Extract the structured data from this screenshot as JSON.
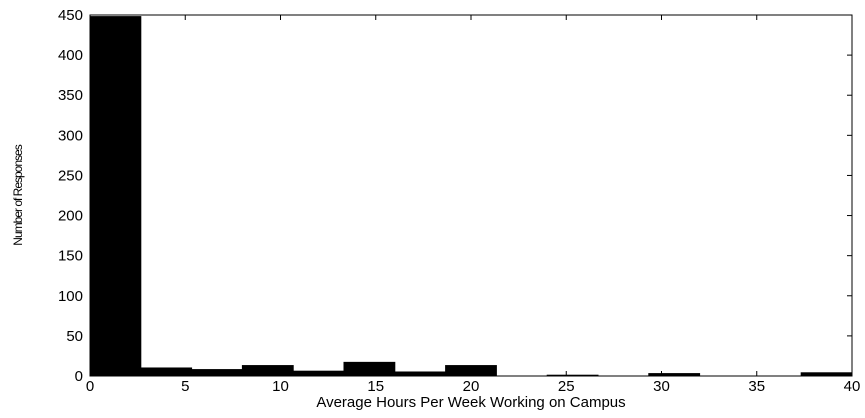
{
  "chart_data": {
    "type": "bar",
    "subtype": "histogram",
    "title": "",
    "xlabel": "Average Hours Per Week Working on Campus",
    "ylabel": "Number of Responses",
    "xlim": [
      0,
      40
    ],
    "ylim": [
      0,
      450
    ],
    "xticks": [
      0,
      5,
      10,
      15,
      20,
      25,
      30,
      35,
      40
    ],
    "yticks": [
      0,
      50,
      100,
      150,
      200,
      250,
      300,
      350,
      400,
      450
    ],
    "grid": false,
    "legend": "none",
    "bar_color": "#000000",
    "bins": [
      {
        "x_start": 0,
        "x_end": 2.667,
        "value": 448
      },
      {
        "x_start": 2.667,
        "x_end": 5.333,
        "value": 10
      },
      {
        "x_start": 5.333,
        "x_end": 8.0,
        "value": 8
      },
      {
        "x_start": 8.0,
        "x_end": 10.667,
        "value": 13
      },
      {
        "x_start": 10.667,
        "x_end": 13.333,
        "value": 6
      },
      {
        "x_start": 13.333,
        "x_end": 16.0,
        "value": 17
      },
      {
        "x_start": 16.0,
        "x_end": 18.667,
        "value": 5
      },
      {
        "x_start": 18.667,
        "x_end": 21.333,
        "value": 13
      },
      {
        "x_start": 21.333,
        "x_end": 24.0,
        "value": 0
      },
      {
        "x_start": 24.0,
        "x_end": 26.667,
        "value": 1
      },
      {
        "x_start": 26.667,
        "x_end": 29.333,
        "value": 0
      },
      {
        "x_start": 29.333,
        "x_end": 32.0,
        "value": 3
      },
      {
        "x_start": 32.0,
        "x_end": 34.667,
        "value": 0
      },
      {
        "x_start": 34.667,
        "x_end": 37.333,
        "value": 0
      },
      {
        "x_start": 37.333,
        "x_end": 40.0,
        "value": 4
      }
    ]
  }
}
